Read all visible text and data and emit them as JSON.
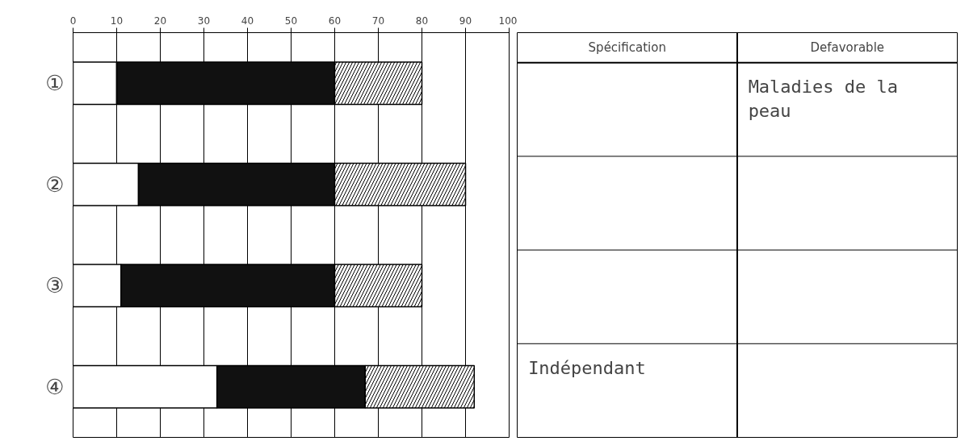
{
  "chart_data": {
    "type": "bar",
    "orientation": "horizontal",
    "stacked": true,
    "categories": [
      "①",
      "②",
      "③",
      "④"
    ],
    "series": [
      {
        "color": "#ffffff",
        "values": [
          10,
          15,
          11,
          33
        ]
      },
      {
        "color": "#111111",
        "values": [
          50,
          45,
          49,
          34
        ]
      },
      {
        "color": "#000000",
        "values": [
          20,
          30,
          20,
          25
        ]
      }
    ],
    "xlim": [
      0,
      100
    ],
    "xticks": [
      0,
      10,
      20,
      30,
      40,
      50,
      60,
      70,
      80,
      90,
      100
    ],
    "grid": "x",
    "annotations": [
      "Spécification",
      "Defavorable",
      "Maladies de la peau",
      "Indépendant"
    ]
  }
}
